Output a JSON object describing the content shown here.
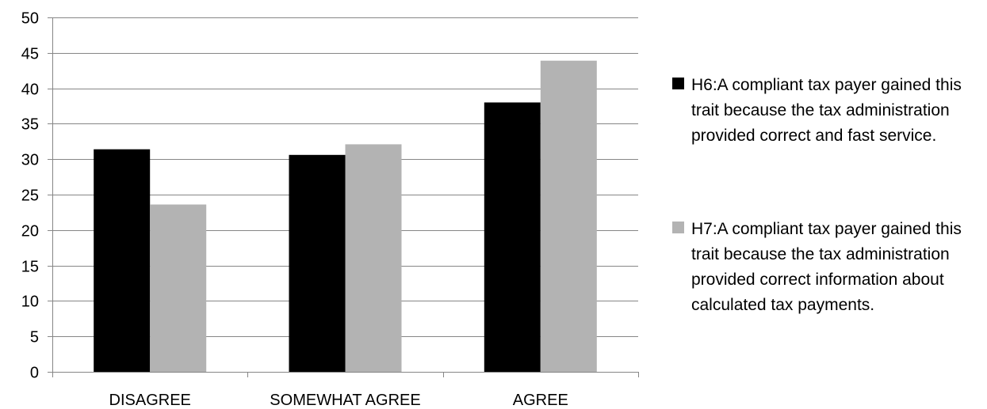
{
  "chart_data": {
    "type": "bar",
    "categories": [
      "DISAGREE",
      "SOMEWHAT AGREE",
      "AGREE"
    ],
    "series": [
      {
        "name": "H6:A compliant tax payer gained this trait because the tax administration provided correct and fast service.",
        "values": [
          31.4,
          30.6,
          38
        ],
        "color": "#000000"
      },
      {
        "name": "H7:A compliant tax payer gained this trait because the tax administration provided correct information about calculated tax payments.",
        "values": [
          23.6,
          32.1,
          43.9
        ],
        "color": "#b3b3b3"
      }
    ],
    "yticks": [
      "0",
      "5",
      "10",
      "15",
      "20",
      "25",
      "30",
      "35",
      "40",
      "45",
      "50"
    ],
    "ylim": [
      0,
      50
    ],
    "title": "",
    "xlabel": "",
    "ylabel": "",
    "grid": true,
    "legend_position": "right",
    "gridline_color": "#868686"
  }
}
